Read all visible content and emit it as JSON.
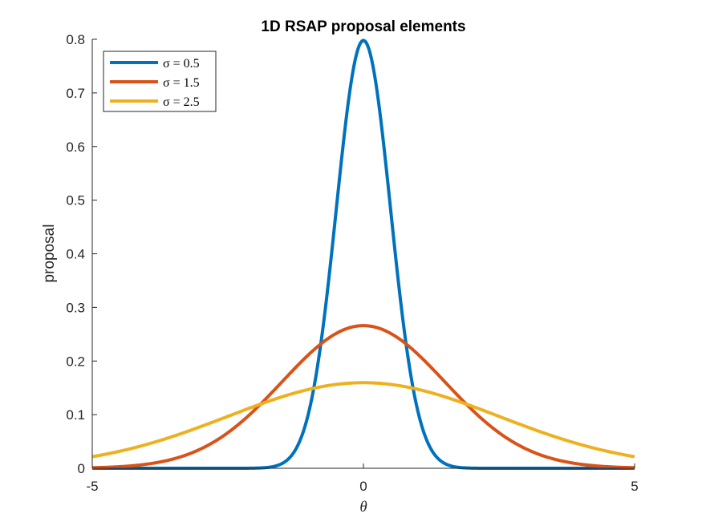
{
  "chart_data": {
    "type": "line",
    "title": "1D RSAP proposal elements",
    "xlabel": "θ",
    "ylabel": "proposal",
    "xlim": [
      -5,
      5
    ],
    "ylim": [
      0,
      0.8
    ],
    "xticks": [
      -5,
      0,
      5
    ],
    "yticks": [
      0,
      0.1,
      0.2,
      0.3,
      0.4,
      0.5,
      0.6,
      0.7,
      0.8
    ],
    "xtick_labels": [
      "-5",
      "0",
      "5"
    ],
    "ytick_labels": [
      "0",
      "0.1",
      "0.2",
      "0.3",
      "0.4",
      "0.5",
      "0.6",
      "0.7",
      "0.8"
    ],
    "grid": false,
    "legend_position": "top-left",
    "series": [
      {
        "name": "σ = 0.5",
        "sigma": 0.5,
        "color": "#0072BD",
        "peak": 0.798
      },
      {
        "name": "σ = 1.5",
        "sigma": 1.5,
        "color": "#D95319",
        "peak": 0.266
      },
      {
        "name": "σ = 2.5",
        "sigma": 2.5,
        "color": "#EDB120",
        "peak": 0.16
      }
    ]
  }
}
